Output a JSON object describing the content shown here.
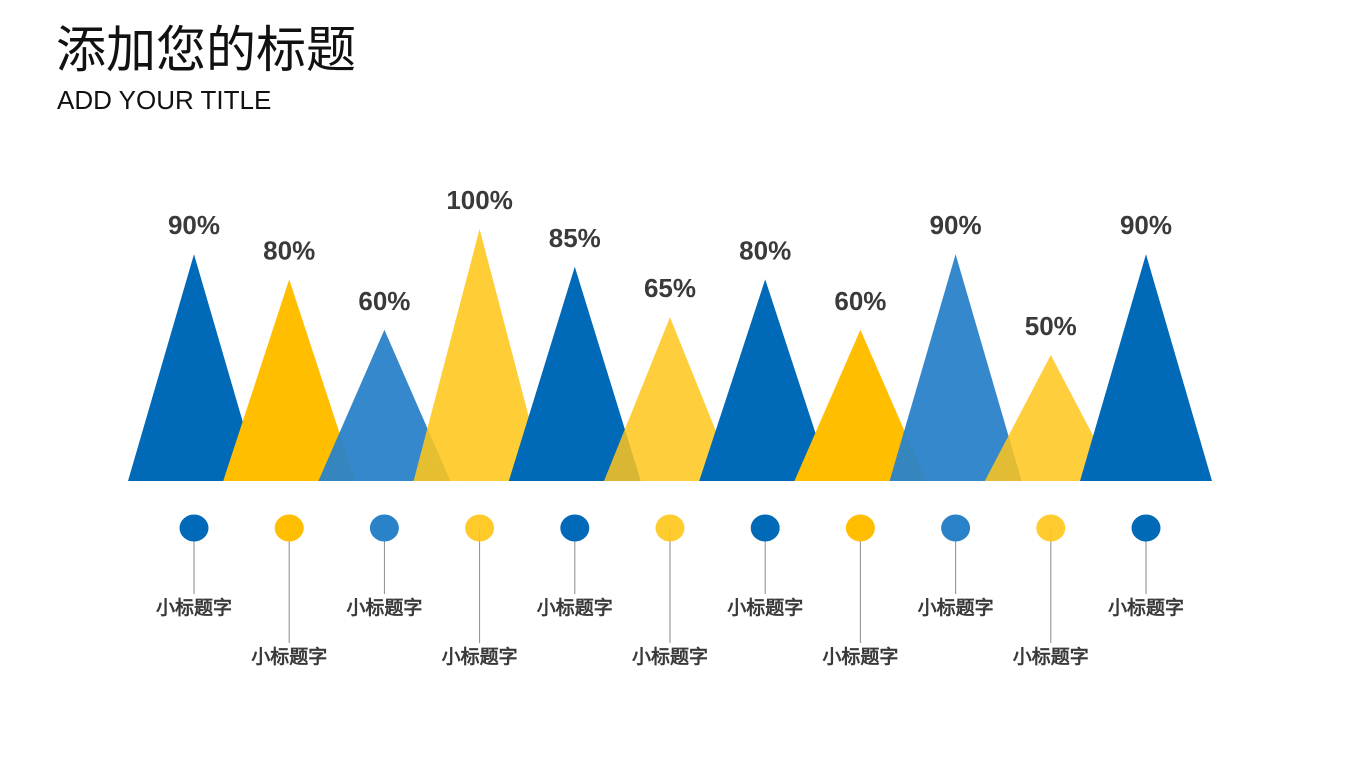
{
  "header": {
    "title": "添加您的标题",
    "subtitle": "ADD YOUR TITLE"
  },
  "chart_data": {
    "type": "bar",
    "marker": "triangle",
    "categories": [
      "小标题字",
      "小标题字",
      "小标题字",
      "小标题字",
      "小标题字",
      "小标题字",
      "小标题字",
      "小标题字",
      "小标题字",
      "小标题字",
      "小标题字"
    ],
    "values": [
      90,
      80,
      60,
      100,
      85,
      65,
      80,
      60,
      90,
      50,
      90
    ],
    "value_labels": [
      "90%",
      "80%",
      "60%",
      "100%",
      "85%",
      "65%",
      "80%",
      "60%",
      "90%",
      "50%",
      "90%"
    ],
    "colors": [
      "#0069B8",
      "#FFBE00",
      "#2A82C8",
      "#FFC61A",
      "#0069B8",
      "#FFC61A",
      "#0069B8",
      "#FFBE00",
      "#2A82C8",
      "#FFC61A",
      "#0069B8"
    ],
    "opacities": [
      1,
      1,
      0.95,
      0.88,
      1,
      0.85,
      1,
      1,
      0.95,
      0.85,
      1
    ],
    "ylim": [
      0,
      100
    ],
    "grid": false
  }
}
